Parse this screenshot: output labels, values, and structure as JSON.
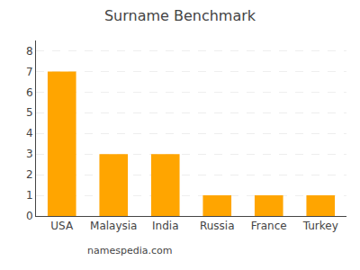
{
  "chart_data": {
    "type": "bar",
    "title": "Surname Benchmark",
    "categories": [
      "USA",
      "Malaysia",
      "India",
      "Russia",
      "France",
      "Turkey"
    ],
    "values": [
      7,
      3,
      3,
      1,
      1,
      1
    ],
    "color": "#FFA500",
    "ylim": [
      0,
      8.5
    ],
    "yticks": [
      0,
      1,
      2,
      3,
      4,
      5,
      6,
      7,
      8
    ],
    "grid": true,
    "annotations": [
      "namespedia.com"
    ]
  }
}
